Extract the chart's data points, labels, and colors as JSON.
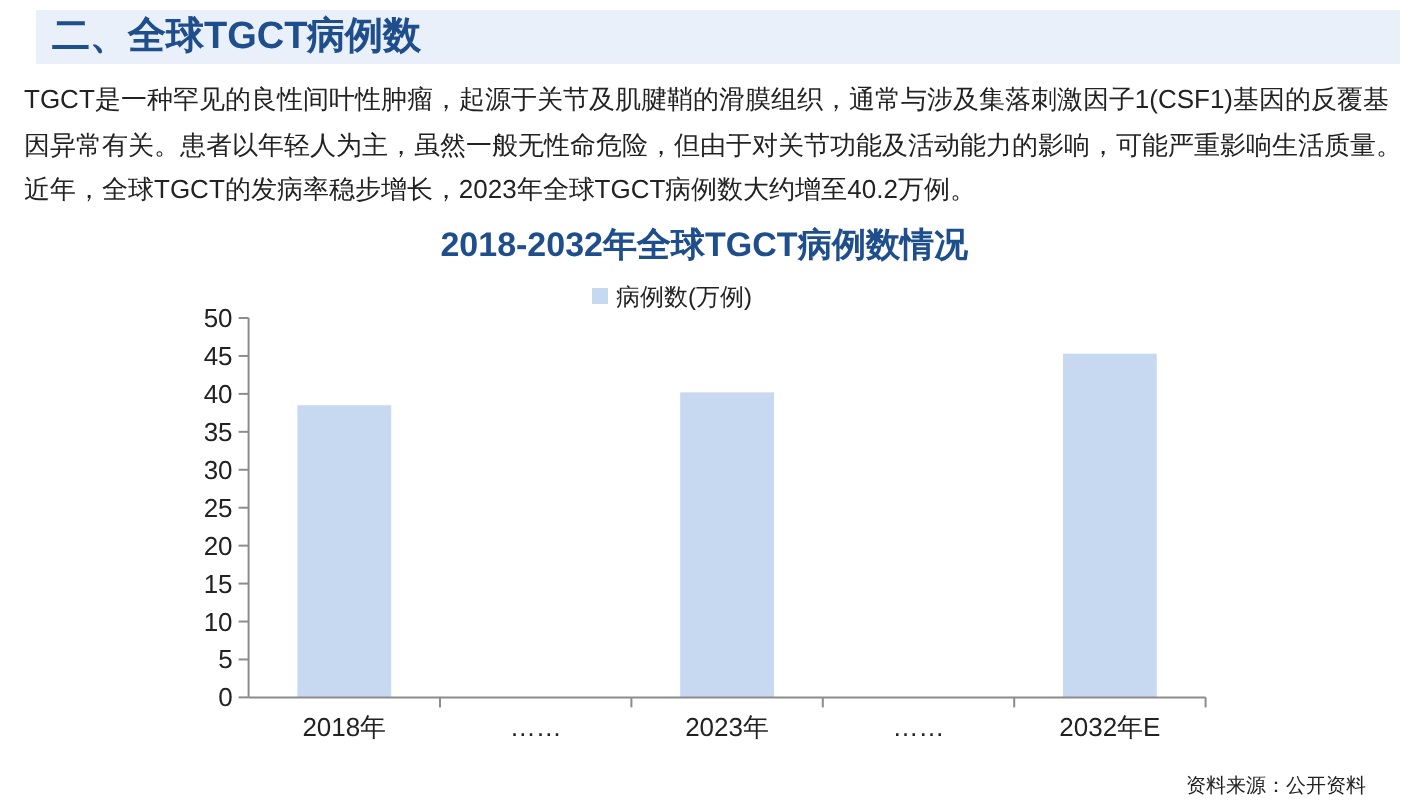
{
  "chart_data": {
    "type": "bar",
    "title": "2018-2032年全球TGCT病例数情况",
    "annotations": [
      "二、全球TGCT病例数",
      "TGCT是一种罕见的良性间叶性肿瘤，起源于关节及肌腱鞘的滑膜组织，通常与涉及集落刺激因子1(CSF1)基因的反覆基因异常有关。患者以年轻人为主，虽然一般无性命危险，但由于对关节功能及活动能力的影响，可能严重影响生活质量。近年，全球TGCT的发病率稳步增长，2023年全球TGCT病例数大约增至40.2万例。",
      "资料来源：公开资料"
    ],
    "categories": [
      "2018年",
      "……",
      "2023年",
      "……",
      "2032年E"
    ],
    "series": [
      {
        "name": "病例数(万例)",
        "color": "#c6d9f1",
        "values": [
          38.5,
          null,
          40.2,
          null,
          45.3
        ]
      }
    ],
    "ylim": [
      0,
      50
    ],
    "yticks": [
      0,
      5,
      10,
      15,
      20,
      25,
      30,
      35,
      40,
      45,
      50
    ],
    "legend": "top"
  }
}
